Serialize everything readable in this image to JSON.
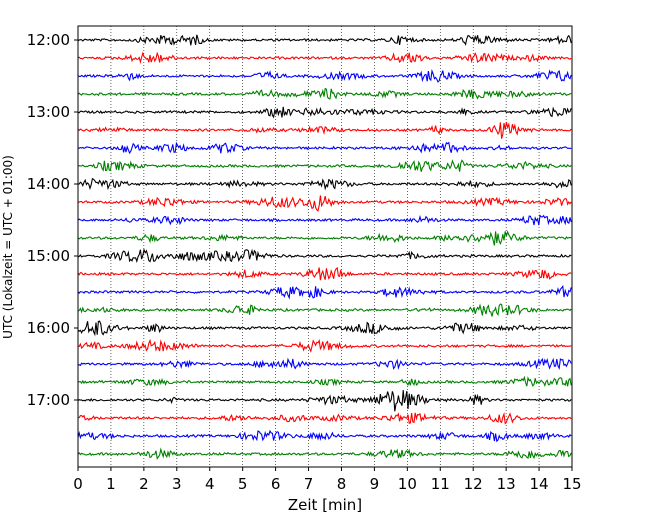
{
  "chart_data": {
    "type": "line",
    "subtype": "helicorder-seismogram",
    "xlabel": "Zeit  [min]",
    "ylabel": "UTC (Lokalzeit = UTC + 01:00)",
    "xlim": [
      0,
      15
    ],
    "x_ticks": [
      "0",
      "1",
      "2",
      "3",
      "4",
      "5",
      "6",
      "7",
      "8",
      "9",
      "10",
      "11",
      "12",
      "13",
      "14",
      "15"
    ],
    "y_ticks": [
      "12:00",
      "13:00",
      "14:00",
      "15:00",
      "16:00",
      "17:00"
    ],
    "grid": "vertical dotted lines at each minute",
    "trace_colors": [
      "#000000",
      "#ff0000",
      "#0000ff",
      "#008000"
    ],
    "traces": [
      {
        "start": "12:00"
      },
      {
        "start": "12:15"
      },
      {
        "start": "12:30"
      },
      {
        "start": "12:45"
      },
      {
        "start": "13:00"
      },
      {
        "start": "13:15"
      },
      {
        "start": "13:30"
      },
      {
        "start": "13:45"
      },
      {
        "start": "14:00"
      },
      {
        "start": "14:15"
      },
      {
        "start": "14:30"
      },
      {
        "start": "14:45"
      },
      {
        "start": "15:00"
      },
      {
        "start": "15:15"
      },
      {
        "start": "15:30"
      },
      {
        "start": "15:45"
      },
      {
        "start": "16:00"
      },
      {
        "start": "16:15"
      },
      {
        "start": "16:30"
      },
      {
        "start": "16:45"
      },
      {
        "start": "17:00"
      },
      {
        "start": "17:15"
      },
      {
        "start": "17:30"
      },
      {
        "start": "17:45"
      }
    ]
  }
}
